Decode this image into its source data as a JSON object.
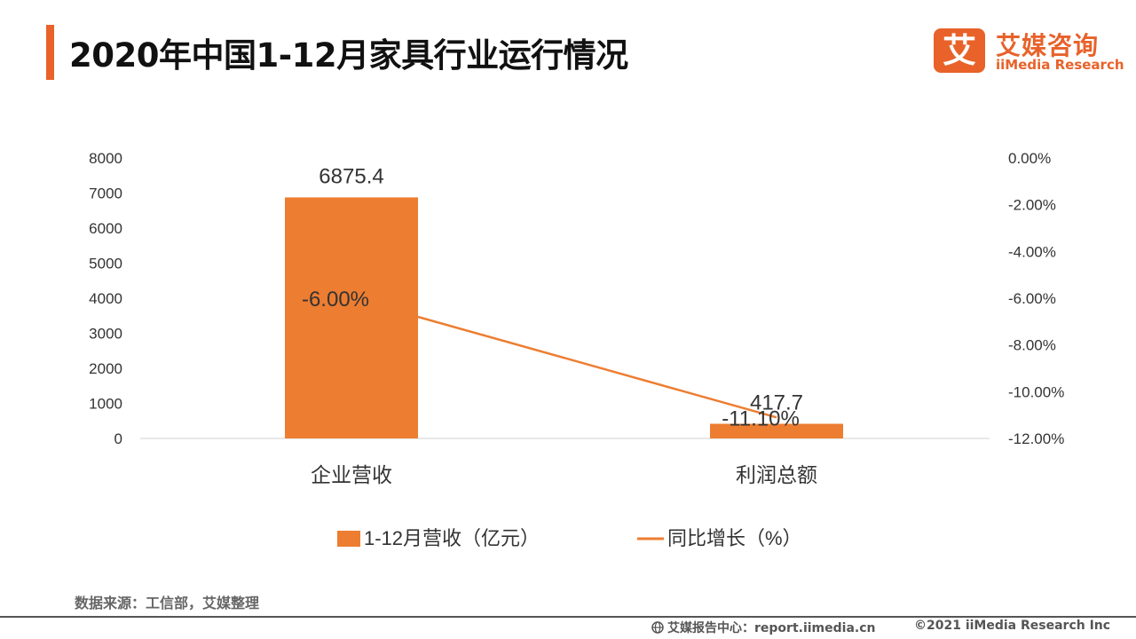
{
  "page": {
    "title": "2020年中国1-12月家具行业运行情况",
    "source": "数据来源：工信部，艾媒整理",
    "footer_left": "艾媒报告中心：report.iimedia.cn",
    "footer_right": "©2021  iiMedia Research  Inc"
  },
  "logo": {
    "mark": "艾",
    "name_cn": "艾媒咨询",
    "name_en": "iiMedia Research"
  },
  "colors": {
    "accent": "#e8622a",
    "bar": "#ed7d31",
    "line": "#ed7d31"
  },
  "chart_data": {
    "type": "bar",
    "categories": [
      "企业营收",
      "利润总额"
    ],
    "series": [
      {
        "name": "1-12月营收（亿元）",
        "type": "bar",
        "axis": "left",
        "values": [
          6875.4,
          417.7
        ],
        "labels": [
          "6875.4",
          "417.7"
        ]
      },
      {
        "name": "同比增长（%）",
        "type": "line",
        "axis": "right",
        "values": [
          -6.0,
          -11.1
        ],
        "labels": [
          "-6.00%",
          "-11.10%"
        ]
      }
    ],
    "y_left": {
      "min": 0,
      "max": 8000,
      "ticks": [
        "0",
        "1000",
        "2000",
        "3000",
        "4000",
        "5000",
        "6000",
        "7000",
        "8000"
      ]
    },
    "y_right": {
      "min": -12,
      "max": 0,
      "ticks": [
        "0.00%",
        "-2.00%",
        "-4.00%",
        "-6.00%",
        "-8.00%",
        "-10.00%",
        "-12.00%"
      ]
    },
    "grid": false,
    "legend": "bottom"
  }
}
